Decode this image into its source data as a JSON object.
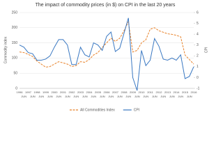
{
  "chart_data": {
    "type": "line",
    "title": "The impact of commodity prices (in $) on CPI in the last 20 years",
    "y_label": "Commodity index",
    "y2_label": "CPI",
    "categories": [
      "1996",
      "JUN",
      "1997",
      "JUN",
      "1998",
      "JUN",
      "1999",
      "JUN",
      "2000",
      "JUN",
      "2001",
      "JUN",
      "2002",
      "JUN",
      "2003",
      "JUN",
      "2004",
      "JUN",
      "2005",
      "JUN",
      "2006",
      "JUN",
      "2007",
      "JUN",
      "2008",
      "JUN",
      "2009",
      "JUN",
      "2010",
      "JUN",
      "2011",
      "JUN",
      "2012",
      "JUN",
      "2013",
      "JUN",
      "2014",
      "JUN",
      "2015",
      "JUN",
      "2016"
    ],
    "series": [
      {
        "name": "All Commodities Index",
        "color": "#e8822a",
        "dashed": true,
        "values": [
          120,
          118,
          112,
          105,
          90,
          80,
          70,
          72,
          80,
          88,
          84,
          80,
          72,
          75,
          88,
          86,
          95,
          110,
          118,
          135,
          150,
          165,
          155,
          165,
          190,
          220,
          120,
          125,
          150,
          160,
          195,
          200,
          190,
          185,
          180,
          178,
          175,
          170,
          110,
          95,
          80
        ]
      },
      {
        "name": "CPI",
        "color": "#3a78c2",
        "axis": "y2",
        "values": [
          3.0,
          2.8,
          2.3,
          2.2,
          1.6,
          1.6,
          1.7,
          2.0,
          2.8,
          3.5,
          3.5,
          3.0,
          1.2,
          1.2,
          2.8,
          2.1,
          1.9,
          3.2,
          3.0,
          2.5,
          3.8,
          4.2,
          2.4,
          2.7,
          4.1,
          5.5,
          0.0,
          -1.2,
          2.5,
          1.1,
          1.6,
          3.6,
          2.9,
          1.7,
          1.6,
          1.8,
          1.6,
          2.1,
          -0.1,
          0.1,
          1.0
        ]
      }
    ],
    "ylim": [
      0,
      250
    ],
    "yticks": [
      0,
      50,
      100,
      150,
      200,
      250
    ],
    "y2lim": [
      -1,
      6
    ],
    "y2ticks": [
      -1,
      0,
      1,
      2,
      3,
      4,
      5,
      6
    ],
    "grid": true
  }
}
